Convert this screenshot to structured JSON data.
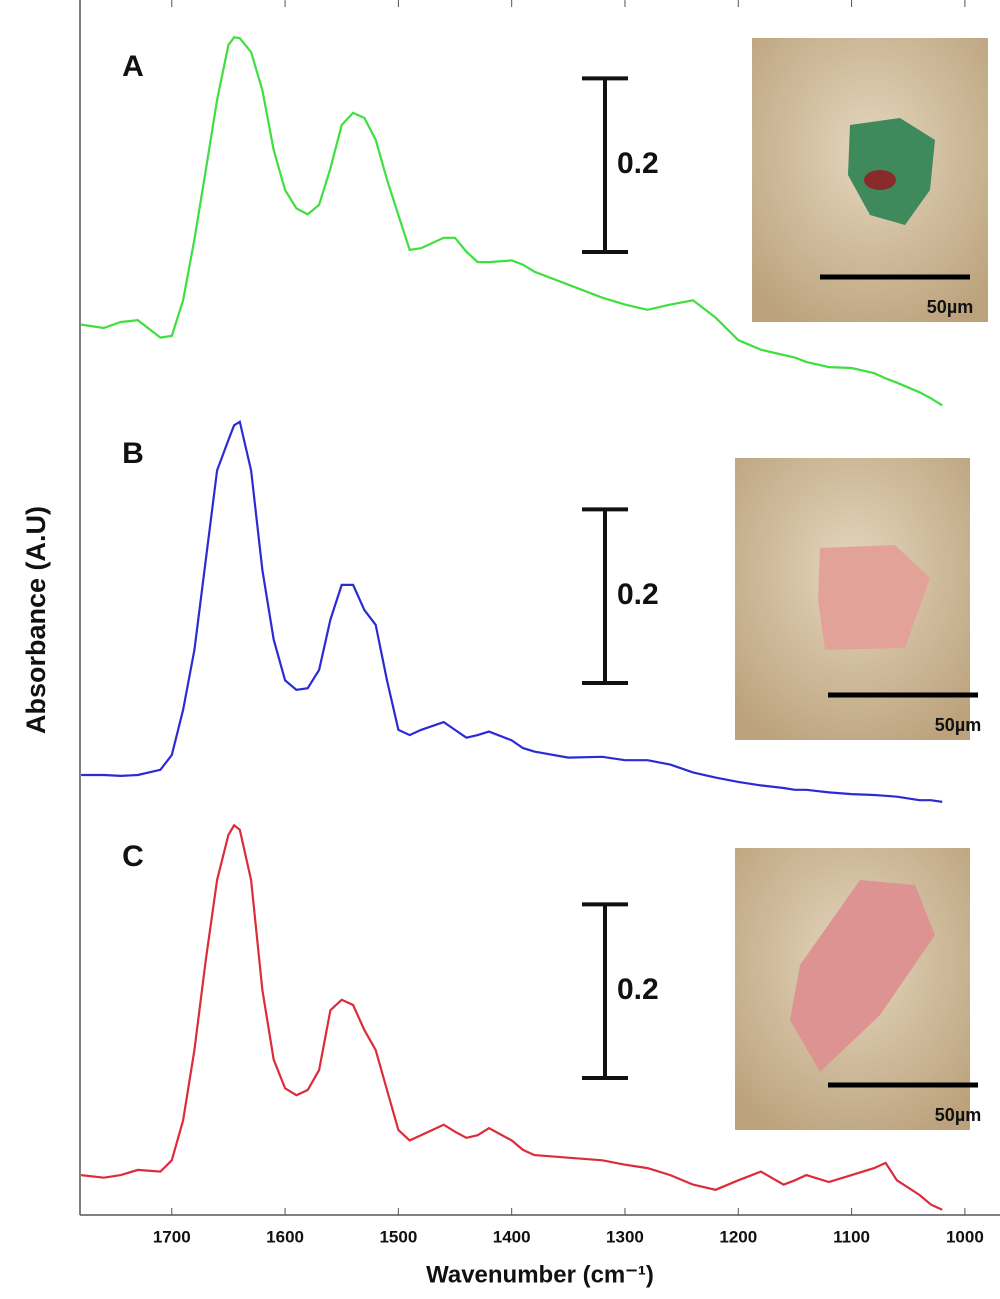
{
  "chart_data": {
    "type": "line",
    "x_label": "Wavenumber (cm⁻¹)",
    "y_label": "Absorbance (A.U)",
    "x": [
      1780,
      1760,
      1745,
      1730,
      1710,
      1700,
      1690,
      1680,
      1670,
      1660,
      1650,
      1645,
      1640,
      1630,
      1620,
      1610,
      1600,
      1590,
      1580,
      1570,
      1560,
      1550,
      1540,
      1530,
      1520,
      1510,
      1500,
      1490,
      1480,
      1460,
      1450,
      1440,
      1430,
      1420,
      1400,
      1390,
      1380,
      1350,
      1320,
      1300,
      1280,
      1260,
      1240,
      1220,
      1200,
      1180,
      1160,
      1150,
      1140,
      1120,
      1100,
      1080,
      1070,
      1060,
      1040,
      1030,
      1020
    ],
    "xlim": [
      1781,
      969
    ],
    "xticks": [
      1700,
      1600,
      1500,
      1400,
      1300,
      1200,
      1100,
      1000
    ],
    "ylim": [
      0,
      1.4
    ],
    "series": [
      {
        "name": "A",
        "color": "#3fdf3f",
        "scale_bar": 0.2,
        "inset_label": "50µm",
        "values": [
          1.026,
          1.022,
          1.029,
          1.031,
          1.011,
          1.013,
          1.054,
          1.124,
          1.204,
          1.285,
          1.348,
          1.357,
          1.356,
          1.34,
          1.296,
          1.227,
          1.181,
          1.16,
          1.153,
          1.164,
          1.206,
          1.256,
          1.27,
          1.264,
          1.239,
          1.193,
          1.152,
          1.112,
          1.114,
          1.126,
          1.126,
          1.11,
          1.098,
          1.098,
          1.1,
          1.095,
          1.087,
          1.072,
          1.057,
          1.049,
          1.043,
          1.049,
          1.054,
          1.034,
          1.008,
          0.997,
          0.991,
          0.988,
          0.983,
          0.977,
          0.976,
          0.97,
          0.964,
          0.959,
          0.948,
          0.941,
          0.933
        ]
      },
      {
        "name": "B",
        "color": "#2b2bd6",
        "scale_bar": 0.2,
        "inset_label": "50µm",
        "values": [
          0.507,
          0.507,
          0.506,
          0.507,
          0.513,
          0.53,
          0.582,
          0.651,
          0.755,
          0.858,
          0.893,
          0.91,
          0.914,
          0.858,
          0.743,
          0.663,
          0.616,
          0.605,
          0.607,
          0.628,
          0.686,
          0.726,
          0.726,
          0.697,
          0.68,
          0.616,
          0.559,
          0.553,
          0.559,
          0.568,
          0.559,
          0.55,
          0.553,
          0.557,
          0.547,
          0.538,
          0.534,
          0.527,
          0.528,
          0.524,
          0.524,
          0.519,
          0.51,
          0.504,
          0.499,
          0.495,
          0.492,
          0.49,
          0.49,
          0.487,
          0.485,
          0.484,
          0.483,
          0.482,
          0.478,
          0.478,
          0.476
        ]
      },
      {
        "name": "C",
        "color": "#dc2b3a",
        "scale_bar": 0.2,
        "inset_label": "50µm",
        "values": [
          0.046,
          0.043,
          0.046,
          0.052,
          0.05,
          0.063,
          0.109,
          0.19,
          0.294,
          0.386,
          0.438,
          0.449,
          0.444,
          0.386,
          0.259,
          0.179,
          0.146,
          0.138,
          0.144,
          0.167,
          0.236,
          0.248,
          0.242,
          0.213,
          0.19,
          0.144,
          0.098,
          0.086,
          0.092,
          0.104,
          0.096,
          0.089,
          0.092,
          0.1,
          0.086,
          0.075,
          0.069,
          0.066,
          0.063,
          0.058,
          0.054,
          0.046,
          0.035,
          0.029,
          0.04,
          0.05,
          0.035,
          0.04,
          0.046,
          0.038,
          0.046,
          0.054,
          0.06,
          0.04,
          0.023,
          0.012,
          0.006
        ]
      }
    ]
  }
}
